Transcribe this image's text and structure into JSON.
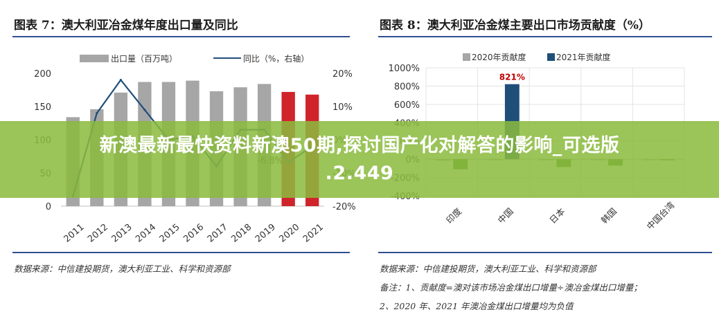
{
  "left_panel": {
    "title": "图表 7：澳大利亚冶金煤年度出口量及同比",
    "source": "数据来源：中信建投期货，澳大利亚工业、科学和资源部"
  },
  "right_panel": {
    "title": "图表 8：澳大利亚冶金煤主要出口市场贡献度（%）",
    "source": "数据来源：中信建投期货，澳大利亚工业、科学和资源部",
    "note1": "备注：1、贡献度=澳对该市场冶金煤出口增量÷澳冶金煤出口增量；",
    "note2": "2、2020 年、2021 年澳冶金煤出口增量均为负值"
  },
  "overlay": {
    "line1": "新澳最新最快资料新澳50期,探讨国产化对解答的影响_可选版",
    "line2": ".2.449"
  },
  "colors": {
    "bar_gray": "#a6a6a6",
    "bar_red": "#d0242b",
    "line_blue": "#1f4e79",
    "bar_green": "#4e8f2f",
    "bar_navy": "#1f4e79",
    "label_red": "#c00000",
    "overlay_green": "#8bba3e"
  },
  "chart_data": [
    {
      "type": "bar",
      "legend": [
        "出口量（百万吨）",
        "同比（%，右轴）"
      ],
      "categories": [
        "2011",
        "2012",
        "2013",
        "2014",
        "2015",
        "2016",
        "2017",
        "2018",
        "2019",
        "2020",
        "2021"
      ],
      "series": [
        {
          "name": "出口量（百万吨）",
          "type": "bar",
          "axis": "left",
          "values": [
            134,
            146,
            171,
            187,
            187,
            189,
            173,
            179,
            184,
            172,
            168
          ],
          "highlight_categories": [
            "2020",
            "2021"
          ]
        },
        {
          "name": "同比（%，右轴）",
          "type": "line",
          "axis": "right",
          "values": [
            -17,
            8,
            18,
            9,
            0,
            1,
            -8,
            3,
            3,
            -6.8,
            -2
          ]
        }
      ],
      "y_left": {
        "ticks": [
          "0",
          "50",
          "100",
          "150",
          "200"
        ],
        "ylim": [
          0,
          200
        ]
      },
      "y_right": {
        "ticks": [
          "-20%",
          "-10%",
          "0%",
          "10%",
          "20%"
        ],
        "ylim": [
          -20,
          20
        ]
      },
      "annotations": [
        {
          "category": "2020",
          "text": "-6.8%"
        }
      ],
      "grid": false,
      "legend_position": "top"
    },
    {
      "type": "bar",
      "legend": [
        "2020年贡献度",
        "2021年贡献度"
      ],
      "categories": [
        "印度",
        "中国",
        "日本",
        "韩国",
        "中国台湾"
      ],
      "series": [
        {
          "name": "2020年贡献度",
          "values": [
            -15,
            -10,
            -5,
            -5,
            -5
          ]
        },
        {
          "name": "2021年贡献度",
          "values": [
            -110,
            821,
            -85,
            -70,
            -10
          ]
        }
      ],
      "y_ticks": [
        "-400%",
        "-200%",
        "0%",
        "200%",
        "400%",
        "600%",
        "800%",
        "1000%"
      ],
      "ylim": [
        -400,
        1000
      ],
      "annotations": [
        {
          "category": "中国",
          "series": "2021年贡献度",
          "text": "821%"
        }
      ],
      "grid": true,
      "legend_position": "top"
    }
  ]
}
